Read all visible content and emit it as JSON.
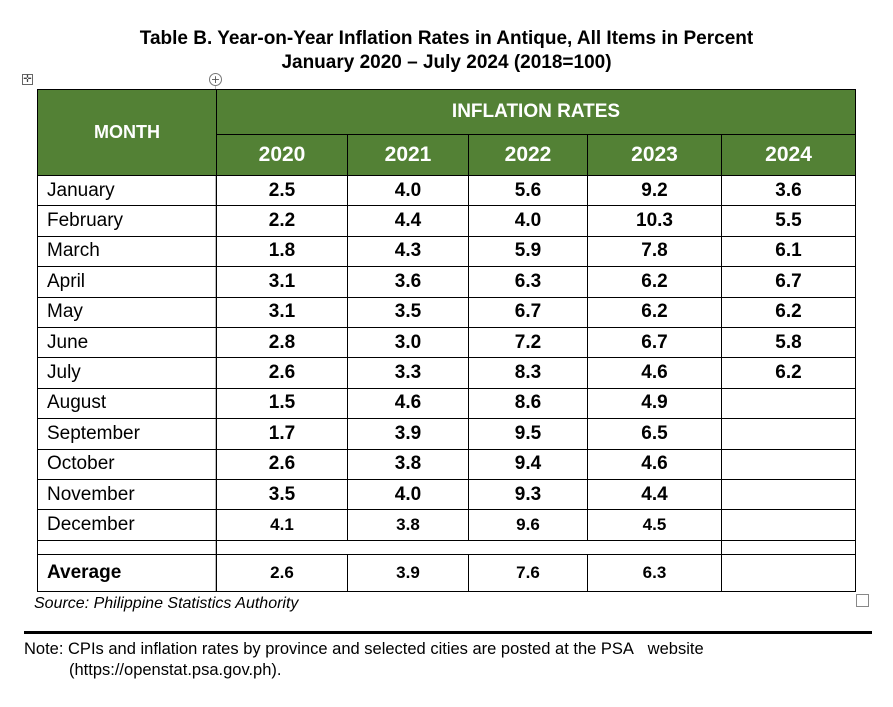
{
  "title": {
    "line1": "Table B. Year-on-Year Inflation Rates in Antique, All Items in Percent",
    "line2": "January 2020 – July 2024 (2018=100)"
  },
  "table": {
    "month_header": "MONTH",
    "group_header": "INFLATION RATES",
    "years": [
      "2020",
      "2021",
      "2022",
      "2023",
      "2024"
    ],
    "rows": [
      {
        "month": "January",
        "values": [
          "2.5",
          "4.0",
          "5.6",
          "9.2",
          "3.6"
        ]
      },
      {
        "month": "February",
        "values": [
          "2.2",
          "4.4",
          "4.0",
          "10.3",
          "5.5"
        ]
      },
      {
        "month": "March",
        "values": [
          "1.8",
          "4.3",
          "5.9",
          "7.8",
          "6.1"
        ]
      },
      {
        "month": "April",
        "values": [
          "3.1",
          "3.6",
          "6.3",
          "6.2",
          "6.7"
        ]
      },
      {
        "month": "May",
        "values": [
          "3.1",
          "3.5",
          "6.7",
          "6.2",
          "6.2"
        ]
      },
      {
        "month": "June",
        "values": [
          "2.8",
          "3.0",
          "7.2",
          "6.7",
          "5.8"
        ]
      },
      {
        "month": "July",
        "values": [
          "2.6",
          "3.3",
          "8.3",
          "4.6",
          "6.2"
        ]
      },
      {
        "month": "August",
        "values": [
          "1.5",
          "4.6",
          "8.6",
          "4.9",
          ""
        ]
      },
      {
        "month": "September",
        "values": [
          "1.7",
          "3.9",
          "9.5",
          "6.5",
          ""
        ]
      },
      {
        "month": "October",
        "values": [
          "2.6",
          "3.8",
          "9.4",
          "4.6",
          ""
        ]
      },
      {
        "month": "November",
        "values": [
          "3.5",
          "4.0",
          "9.3",
          "4.4",
          ""
        ]
      },
      {
        "month": "December",
        "values": [
          "4.1",
          "3.8",
          "9.6",
          "4.5",
          ""
        ]
      }
    ],
    "average": {
      "label": "Average",
      "values": [
        "2.6",
        "3.9",
        "7.6",
        "6.3",
        ""
      ]
    }
  },
  "source": "Source: Philippine Statistics Authority",
  "note": {
    "line1": "Note: CPIs and inflation rates by province and selected cities are posted at the PSA   website",
    "line2": "(https://openstat.psa.gov.ph)."
  },
  "colors": {
    "header_green": "#538135",
    "header_text": "#ffffff"
  }
}
